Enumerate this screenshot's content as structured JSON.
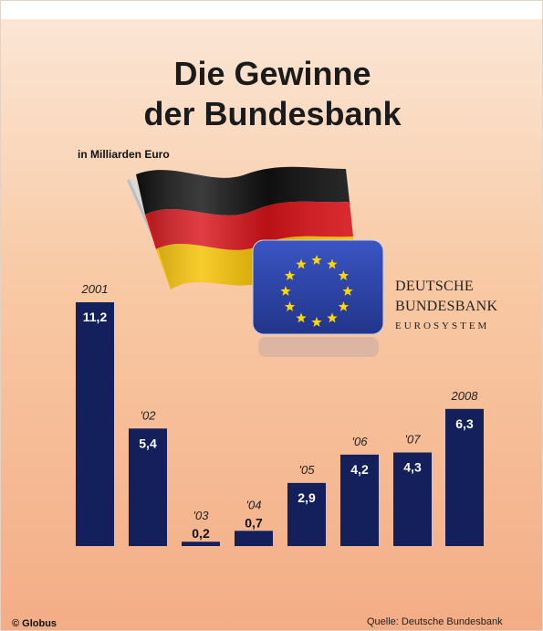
{
  "title_line1": "Die Gewinne",
  "title_line2": "der Bundesbank",
  "subtitle": "in Milliarden Euro",
  "logo": {
    "line1": "DEUTSCHE",
    "line2": "BUNDESBANK",
    "line3": "EUROSYSTEM",
    "flag_colors": [
      "#111111",
      "#d8141a",
      "#f6c100"
    ],
    "eu_blue": "#2a3f9e",
    "eu_star": "#ffd700"
  },
  "credit": "© Globus",
  "source": "Quelle: Deutsche Bundesbank",
  "colors": {
    "bar": "#13205b",
    "value_text": "#ffffff",
    "year_text": "#222222"
  },
  "chart_data": {
    "type": "bar",
    "title": "Die Gewinne der Bundesbank",
    "ylabel": "in Milliarden Euro",
    "categories": [
      "2001",
      "'02",
      "'03",
      "'04",
      "'05",
      "'06",
      "'07",
      "2008"
    ],
    "values": [
      11.2,
      5.4,
      0.2,
      0.7,
      2.9,
      4.2,
      4.3,
      6.3
    ],
    "value_labels": [
      "11,2",
      "5,4",
      "0,2",
      "0,7",
      "2,9",
      "4,2",
      "4,3",
      "6,3"
    ],
    "ylim": [
      0,
      11.2
    ],
    "grid": false,
    "legend": "none"
  }
}
